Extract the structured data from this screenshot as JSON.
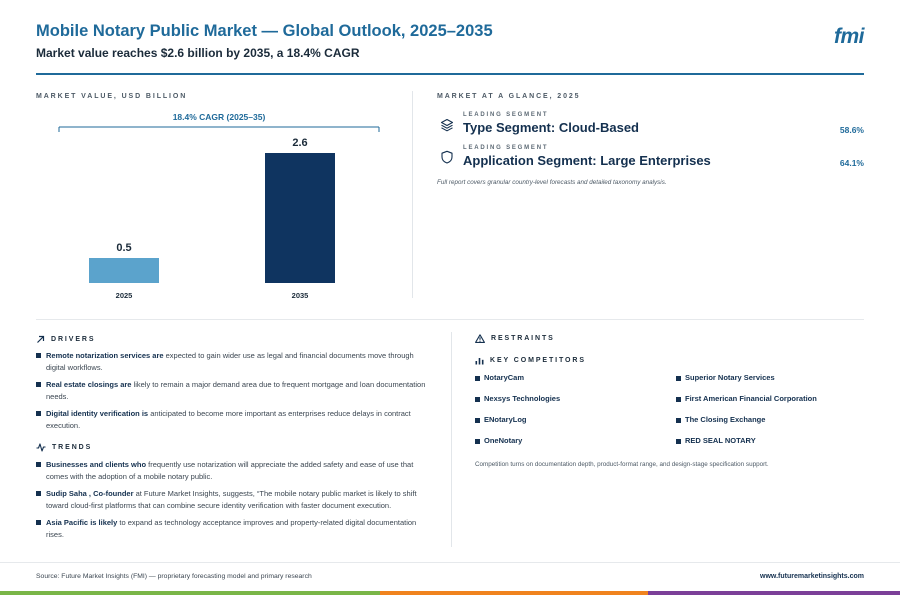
{
  "header": {
    "title": "Mobile Notary Public Market — Global Outlook, 2025–2035",
    "subtitle": "Market value reaches $2.6 billion by 2035, a 18.4% CAGR",
    "logo": "fmi"
  },
  "market_value": {
    "label": "MARKET VALUE, USD BILLION",
    "cagr_label": "18.4% CAGR (2025–35)"
  },
  "chart_data": {
    "type": "bar",
    "title": "",
    "categories": [
      "2025",
      "2035"
    ],
    "values": [
      0.5,
      2.6
    ],
    "value_labels": [
      "0.5",
      "2.6"
    ],
    "ylim": [
      0,
      2.6
    ],
    "grid": false,
    "colors": [
      "#5ba3cc",
      "#0f3460"
    ]
  },
  "glance": {
    "label": "MARKET AT A GLANCE, 2025",
    "segments": [
      {
        "kicker": "LEADING SEGMENT",
        "name": "Type Segment: Cloud-Based",
        "share": "58.6%",
        "icon": "layers-icon"
      },
      {
        "kicker": "LEADING SEGMENT",
        "name": "Application Segment: Large Enterprises",
        "share": "64.1%",
        "icon": "shield-icon"
      }
    ],
    "note": "Full report covers granular country-level forecasts and detailed taxonomy analysis."
  },
  "drivers": {
    "label": "DRIVERS",
    "items": [
      {
        "bold": "Remote notarization services are",
        "text": " expected to gain wider use as legal and financial documents move through digital workflows."
      },
      {
        "bold": "Real estate closings are",
        "text": " likely to remain a major demand area due to frequent mortgage and loan documentation needs."
      },
      {
        "bold": "Digital identity verification is",
        "text": " anticipated to become more important as enterprises reduce delays in contract execution."
      }
    ]
  },
  "trends": {
    "label": "TRENDS",
    "items": [
      {
        "bold": "Businesses and clients who",
        "text": " frequently use notarization will appreciate the added safety and ease of use that comes with the adoption of a mobile notary public."
      },
      {
        "bold": "Sudip Saha , Co-founder",
        "text": " at Future Market Insights, suggests, “The mobile notary public market is likely to shift toward cloud-first platforms that can combine secure identity verification with faster document execution."
      },
      {
        "bold": "Asia Pacific is likely",
        "text": " to expand as technology acceptance improves and property-related digital documentation rises."
      }
    ]
  },
  "restraints": {
    "label": "RESTRAINTS"
  },
  "competitors": {
    "label": "KEY COMPETITORS",
    "items": [
      "NotaryCam",
      "Superior Notary Services",
      "Nexsys Technologies",
      "First American Financial Corporation",
      "ENotaryLog",
      "The Closing Exchange",
      "OneNotary",
      "RED SEAL NOTARY"
    ],
    "note": "Competition turns on documentation depth, product-format range, and design-stage specification support."
  },
  "footer": {
    "source": "Source: Future Market Insights (FMI) — proprietary forecasting model and primary research",
    "url": "www.futuremarketinsights.com"
  },
  "colors": {
    "accent": "#1f6a9a",
    "navy": "#14304f",
    "stripe_green": "#7ab648",
    "stripe_orange": "#f0831e",
    "stripe_purple": "#7b3f98"
  }
}
